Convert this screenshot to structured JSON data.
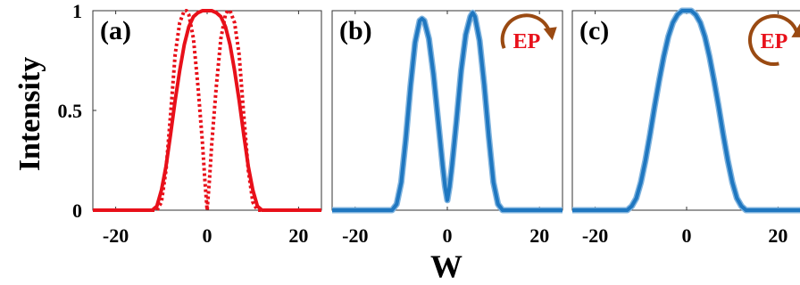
{
  "figure": {
    "ylabel": "Intensity",
    "xlabel": "W"
  },
  "colors": {
    "red": "#e8101a",
    "blue": "#1f77c0",
    "blue_light": "#7fb3de",
    "ep_arrow": "#9a4a12"
  },
  "chart_data": [
    {
      "type": "line",
      "panel_label": "(a)",
      "xlim": [
        -25,
        25
      ],
      "ylim": [
        0,
        1
      ],
      "xticks": [
        "-20",
        "0",
        "20"
      ],
      "yticks": [
        "0",
        "0.5",
        "1"
      ],
      "series": [
        {
          "style": "solid",
          "color": "#e8101a",
          "x": [
            -25,
            -12,
            -11,
            -10,
            -9,
            -8,
            -7,
            -6,
            -5,
            -4,
            -3,
            -2,
            -1,
            0,
            1,
            2,
            3,
            4,
            5,
            6,
            7,
            8,
            9,
            10,
            11,
            12,
            25
          ],
          "y": [
            0,
            0,
            0.02,
            0.1,
            0.22,
            0.38,
            0.55,
            0.7,
            0.83,
            0.92,
            0.97,
            0.99,
            1.0,
            1.0,
            1.0,
            0.99,
            0.97,
            0.92,
            0.83,
            0.7,
            0.55,
            0.38,
            0.22,
            0.1,
            0.02,
            0,
            0
          ]
        },
        {
          "style": "dotted",
          "color": "#e8101a",
          "x": [
            -25,
            -11,
            -10,
            -9,
            -8,
            -7,
            -6,
            -5,
            -4.5,
            -4,
            -3,
            -2,
            -1,
            -0.5,
            0,
            0.5,
            1,
            2,
            3,
            4,
            4.5,
            5,
            6,
            7,
            8,
            9,
            10,
            11,
            25
          ],
          "y": [
            0,
            0,
            0.04,
            0.2,
            0.48,
            0.78,
            0.94,
            1.0,
            1.0,
            0.98,
            0.86,
            0.62,
            0.33,
            0.15,
            0,
            0.15,
            0.33,
            0.62,
            0.86,
            0.98,
            1.0,
            1.0,
            0.94,
            0.78,
            0.48,
            0.2,
            0.04,
            0,
            0
          ]
        }
      ]
    },
    {
      "type": "line",
      "panel_label": "(b)",
      "xlim": [
        -25,
        25
      ],
      "ylim": [
        0,
        1
      ],
      "xticks": [
        "-20",
        "0",
        "20"
      ],
      "ep_label": "EP",
      "ep_direction": "clockwise",
      "series": [
        {
          "style": "solid",
          "color": "#1f77c0",
          "x": [
            -25,
            -12,
            -11,
            -10,
            -9,
            -8,
            -7,
            -6,
            -5.5,
            -5,
            -4,
            -3,
            -2,
            -1,
            -0.5,
            0,
            0.5,
            1,
            2,
            3,
            4,
            5,
            5.5,
            6,
            7,
            8,
            9,
            10,
            11,
            12,
            25
          ],
          "y": [
            0,
            0,
            0.03,
            0.14,
            0.36,
            0.62,
            0.84,
            0.95,
            0.96,
            0.95,
            0.86,
            0.68,
            0.45,
            0.22,
            0.12,
            0.05,
            0.12,
            0.22,
            0.45,
            0.7,
            0.88,
            0.97,
            0.99,
            0.97,
            0.85,
            0.63,
            0.37,
            0.14,
            0.03,
            0,
            0
          ]
        }
      ]
    },
    {
      "type": "line",
      "panel_label": "(c)",
      "xlim": [
        -25,
        25
      ],
      "ylim": [
        0,
        1
      ],
      "xticks": [
        "-20",
        "0",
        "20"
      ],
      "ep_label": "EP",
      "ep_direction": "counterclockwise",
      "series": [
        {
          "style": "solid",
          "color": "#1f77c0",
          "x": [
            -25,
            -13,
            -12,
            -11,
            -10,
            -9,
            -8,
            -7,
            -6,
            -5,
            -4,
            -3,
            -2,
            -1,
            0,
            1,
            2,
            3,
            4,
            5,
            6,
            7,
            8,
            9,
            10,
            11,
            12,
            13,
            25
          ],
          "y": [
            0,
            0,
            0.02,
            0.06,
            0.14,
            0.25,
            0.38,
            0.52,
            0.65,
            0.77,
            0.87,
            0.94,
            0.98,
            1.0,
            1.0,
            1.0,
            0.98,
            0.94,
            0.87,
            0.77,
            0.65,
            0.52,
            0.38,
            0.25,
            0.14,
            0.06,
            0.02,
            0,
            0
          ]
        }
      ]
    }
  ]
}
